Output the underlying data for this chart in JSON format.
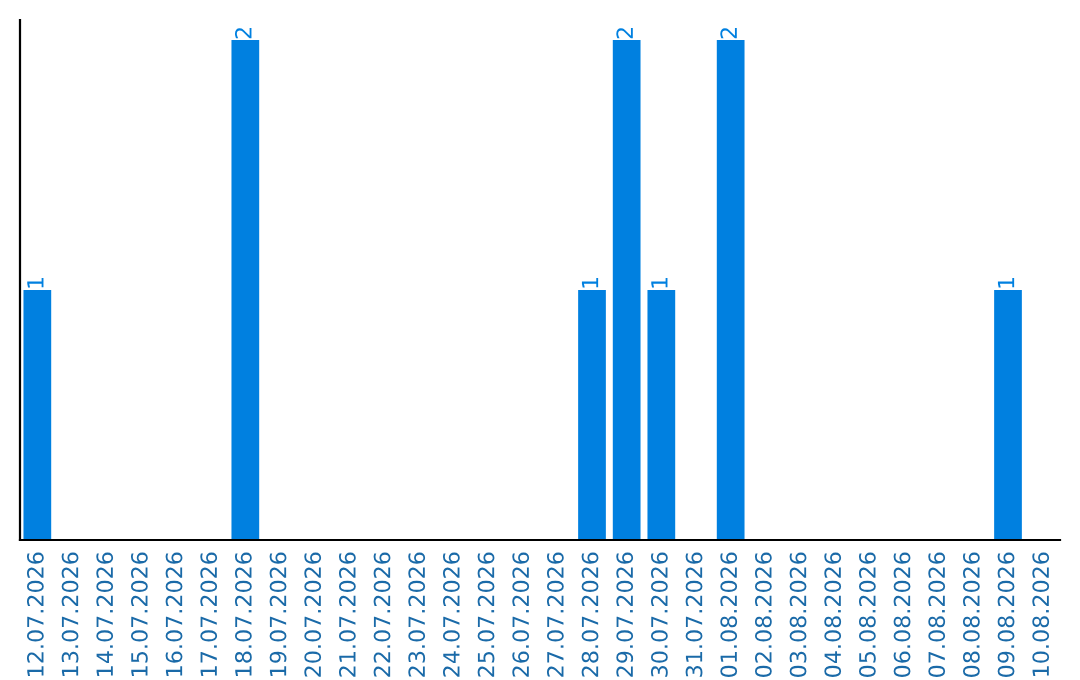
{
  "chart_data": {
    "type": "bar",
    "categories": [
      "12.07.2026",
      "13.07.2026",
      "14.07.2026",
      "15.07.2026",
      "16.07.2026",
      "17.07.2026",
      "18.07.2026",
      "19.07.2026",
      "20.07.2026",
      "21.07.2026",
      "22.07.2026",
      "23.07.2026",
      "24.07.2026",
      "25.07.2026",
      "26.07.2026",
      "27.07.2026",
      "28.07.2026",
      "29.07.2026",
      "30.07.2026",
      "31.07.2026",
      "01.08.2026",
      "02.08.2026",
      "03.08.2026",
      "04.08.2026",
      "05.08.2026",
      "06.08.2026",
      "07.08.2026",
      "08.08.2026",
      "09.08.2026",
      "10.08.2026"
    ],
    "values": [
      1,
      0,
      0,
      0,
      0,
      0,
      2,
      0,
      0,
      0,
      0,
      0,
      0,
      0,
      0,
      0,
      1,
      2,
      1,
      0,
      2,
      0,
      0,
      0,
      0,
      0,
      0,
      0,
      1,
      0
    ],
    "value_labels": [
      "1",
      null,
      null,
      null,
      null,
      null,
      "2",
      null,
      null,
      null,
      null,
      null,
      null,
      null,
      null,
      null,
      "1",
      "2",
      "1",
      null,
      "2",
      null,
      null,
      null,
      null,
      null,
      null,
      null,
      "1",
      null
    ],
    "color": "#0080e0",
    "tick_labels": "x",
    "grid": false,
    "legend": false
  }
}
